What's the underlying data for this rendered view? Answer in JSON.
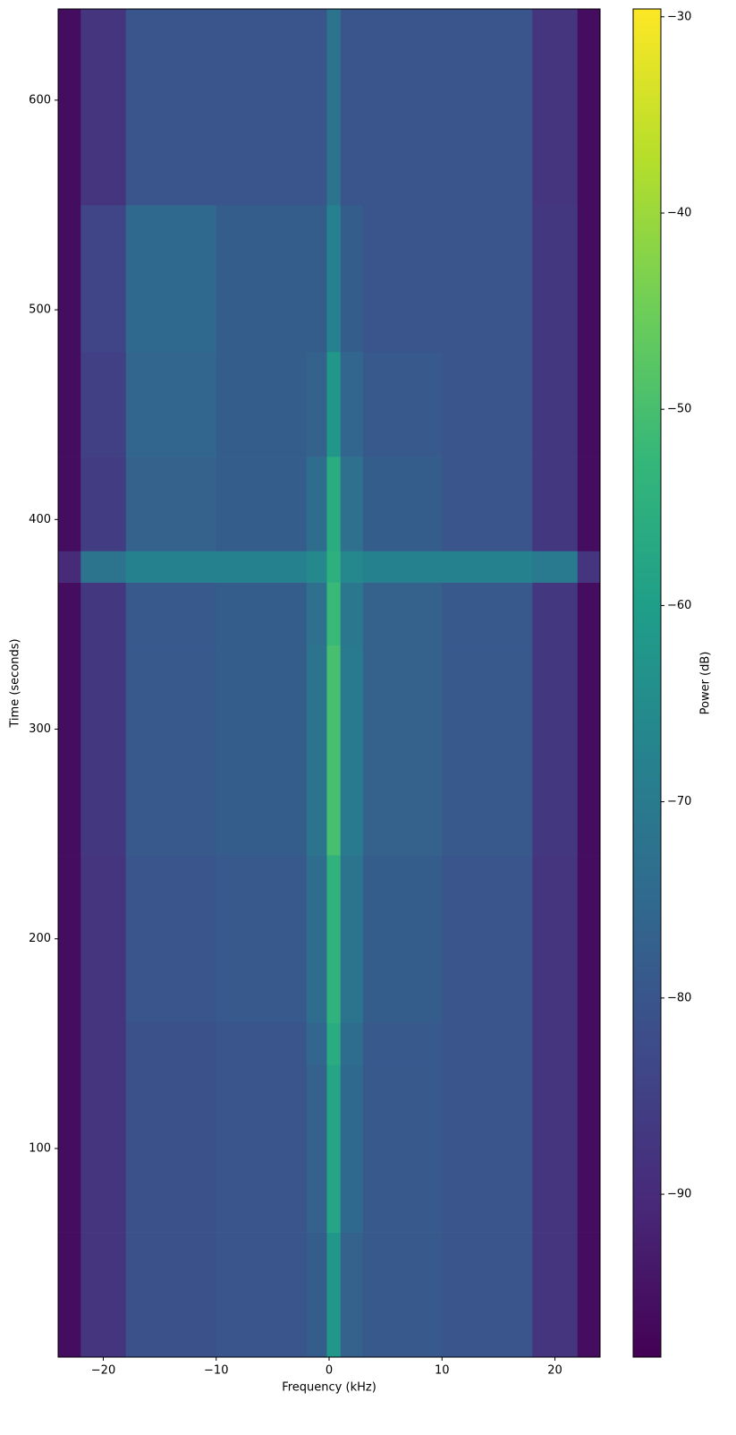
{
  "chart_data": {
    "type": "spectrogram",
    "xlabel": "Frequency (kHz)",
    "ylabel": "Time (seconds)",
    "colorbar_label": "Power (dB)",
    "xlim": [
      -24,
      24
    ],
    "ylim": [
      0.5,
      643.5
    ],
    "clim": [
      -98.3,
      -29.6
    ],
    "xticks": [
      {
        "value": -20,
        "label": "−20"
      },
      {
        "value": -10,
        "label": "−10"
      },
      0,
      10,
      20
    ],
    "yticks": [
      100,
      200,
      300,
      400,
      500,
      600
    ],
    "cticks": [
      {
        "value": -90,
        "label": "−90"
      },
      {
        "value": -80,
        "label": "−80"
      },
      {
        "value": -70,
        "label": "−70"
      },
      {
        "value": -60,
        "label": "−60"
      },
      {
        "value": -50,
        "label": "−50"
      },
      {
        "value": -40,
        "label": "−40"
      },
      {
        "value": -30,
        "label": "−30"
      }
    ],
    "colormap": [
      "#440154",
      "#482878",
      "#3e4989",
      "#31688e",
      "#26828e",
      "#1f9e89",
      "#35b779",
      "#6ece58",
      "#b5de2b",
      "#fde725"
    ],
    "x_edges": [
      -24,
      -22,
      -18,
      -10,
      -2,
      -0.2,
      1,
      3,
      10,
      18,
      22,
      24
    ],
    "y_edges": [
      0.5,
      60,
      140,
      160,
      240,
      340,
      370,
      385,
      430,
      480,
      550,
      643.5
    ],
    "values": [
      [
        -96,
        -88,
        -81,
        -80,
        -78,
        -62,
        -77,
        -79,
        -80,
        -88,
        -96
      ],
      [
        -96,
        -88,
        -81,
        -80,
        -77,
        -58,
        -75,
        -79,
        -80,
        -88,
        -96
      ],
      [
        -96,
        -88,
        -81,
        -80,
        -76,
        -56,
        -74,
        -79,
        -80,
        -88,
        -96
      ],
      [
        -96,
        -88,
        -80,
        -79,
        -74,
        -54,
        -72,
        -78,
        -80,
        -88,
        -96
      ],
      [
        -96,
        -87,
        -79,
        -78,
        -72,
        -50,
        -70,
        -77,
        -79,
        -87,
        -96
      ],
      [
        -96,
        -87,
        -79,
        -78,
        -73,
        -52,
        -71,
        -77,
        -79,
        -87,
        -96
      ],
      [
        -90,
        -72,
        -68,
        -68,
        -66,
        -55,
        -66,
        -68,
        -68,
        -70,
        -88
      ],
      [
        -96,
        -86,
        -77,
        -78,
        -74,
        -56,
        -73,
        -78,
        -80,
        -87,
        -96
      ],
      [
        -96,
        -85,
        -76,
        -78,
        -77,
        -62,
        -76,
        -79,
        -80,
        -87,
        -96
      ],
      [
        -96,
        -84,
        -75,
        -78,
        -78,
        -68,
        -78,
        -80,
        -80,
        -87,
        -96
      ],
      [
        -96,
        -88,
        -80,
        -80,
        -80,
        -72,
        -80,
        -80,
        -80,
        -88,
        -96
      ]
    ]
  }
}
